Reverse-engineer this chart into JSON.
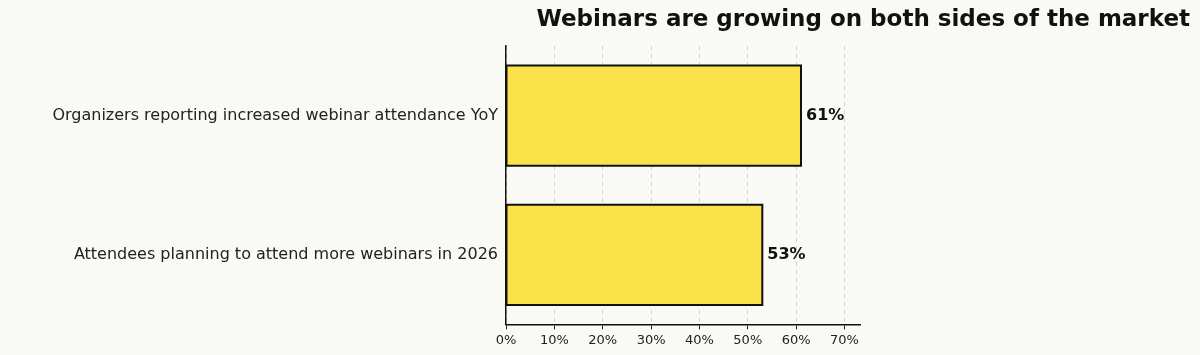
{
  "chart_data": {
    "type": "bar",
    "orientation": "horizontal",
    "title": "Webinars are growing on both sides of the market",
    "categories": [
      "Organizers reporting increased webinar attendance YoY",
      "Attendees planning to attend more webinars in 2026"
    ],
    "values": [
      61,
      53
    ],
    "color": "#fce24a",
    "value_labels": [
      "61%",
      "53%"
    ],
    "xlim": [
      0,
      73.2
    ],
    "xticks": [
      {
        "value": 0,
        "label": "0%"
      },
      {
        "value": 10,
        "label": "10%"
      },
      {
        "value": 20,
        "label": "20%"
      },
      {
        "value": 30,
        "label": "30%"
      },
      {
        "value": 40,
        "label": "40%"
      },
      {
        "value": 50,
        "label": "50%"
      },
      {
        "value": 60,
        "label": "60%"
      },
      {
        "value": 70,
        "label": "70%"
      }
    ],
    "grid": "x",
    "legend": false
  }
}
